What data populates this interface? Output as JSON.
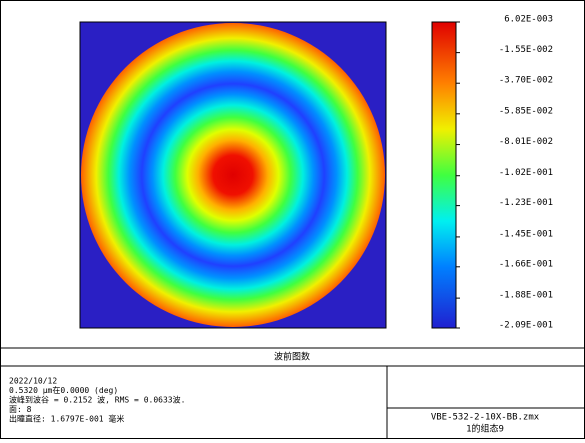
{
  "chart_data": {
    "type": "wavefront-map",
    "colorbar": {
      "zlim": [
        -0.209,
        0.00602
      ],
      "ticks": [
        {
          "value": 0.00602,
          "label": "6.02E-003"
        },
        {
          "value": -0.0155,
          "label": "-1.55E-002"
        },
        {
          "value": -0.037,
          "label": "-3.70E-002"
        },
        {
          "value": -0.0585,
          "label": "-5.85E-002"
        },
        {
          "value": -0.0801,
          "label": "-8.01E-002"
        },
        {
          "value": -0.102,
          "label": "-1.02E-001"
        },
        {
          "value": -0.123,
          "label": "-1.23E-001"
        },
        {
          "value": -0.145,
          "label": "-1.45E-001"
        },
        {
          "value": -0.166,
          "label": "-1.66E-001"
        },
        {
          "value": -0.188,
          "label": "-1.88E-001"
        },
        {
          "value": -0.209,
          "label": "-2.09E-001"
        }
      ]
    },
    "title": "波前图数",
    "info": [
      "2022/10/12",
      "0.5320 μm在0.0000 (deg)",
      "波峰到波谷 = 0.2152 波, RMS = 0.0633波.",
      "面: 8",
      "出瞳直径: 1.6797E-001 毫米"
    ],
    "file": "VBE-532-2-10X-BB.zmx",
    "config": "1的组态9"
  }
}
